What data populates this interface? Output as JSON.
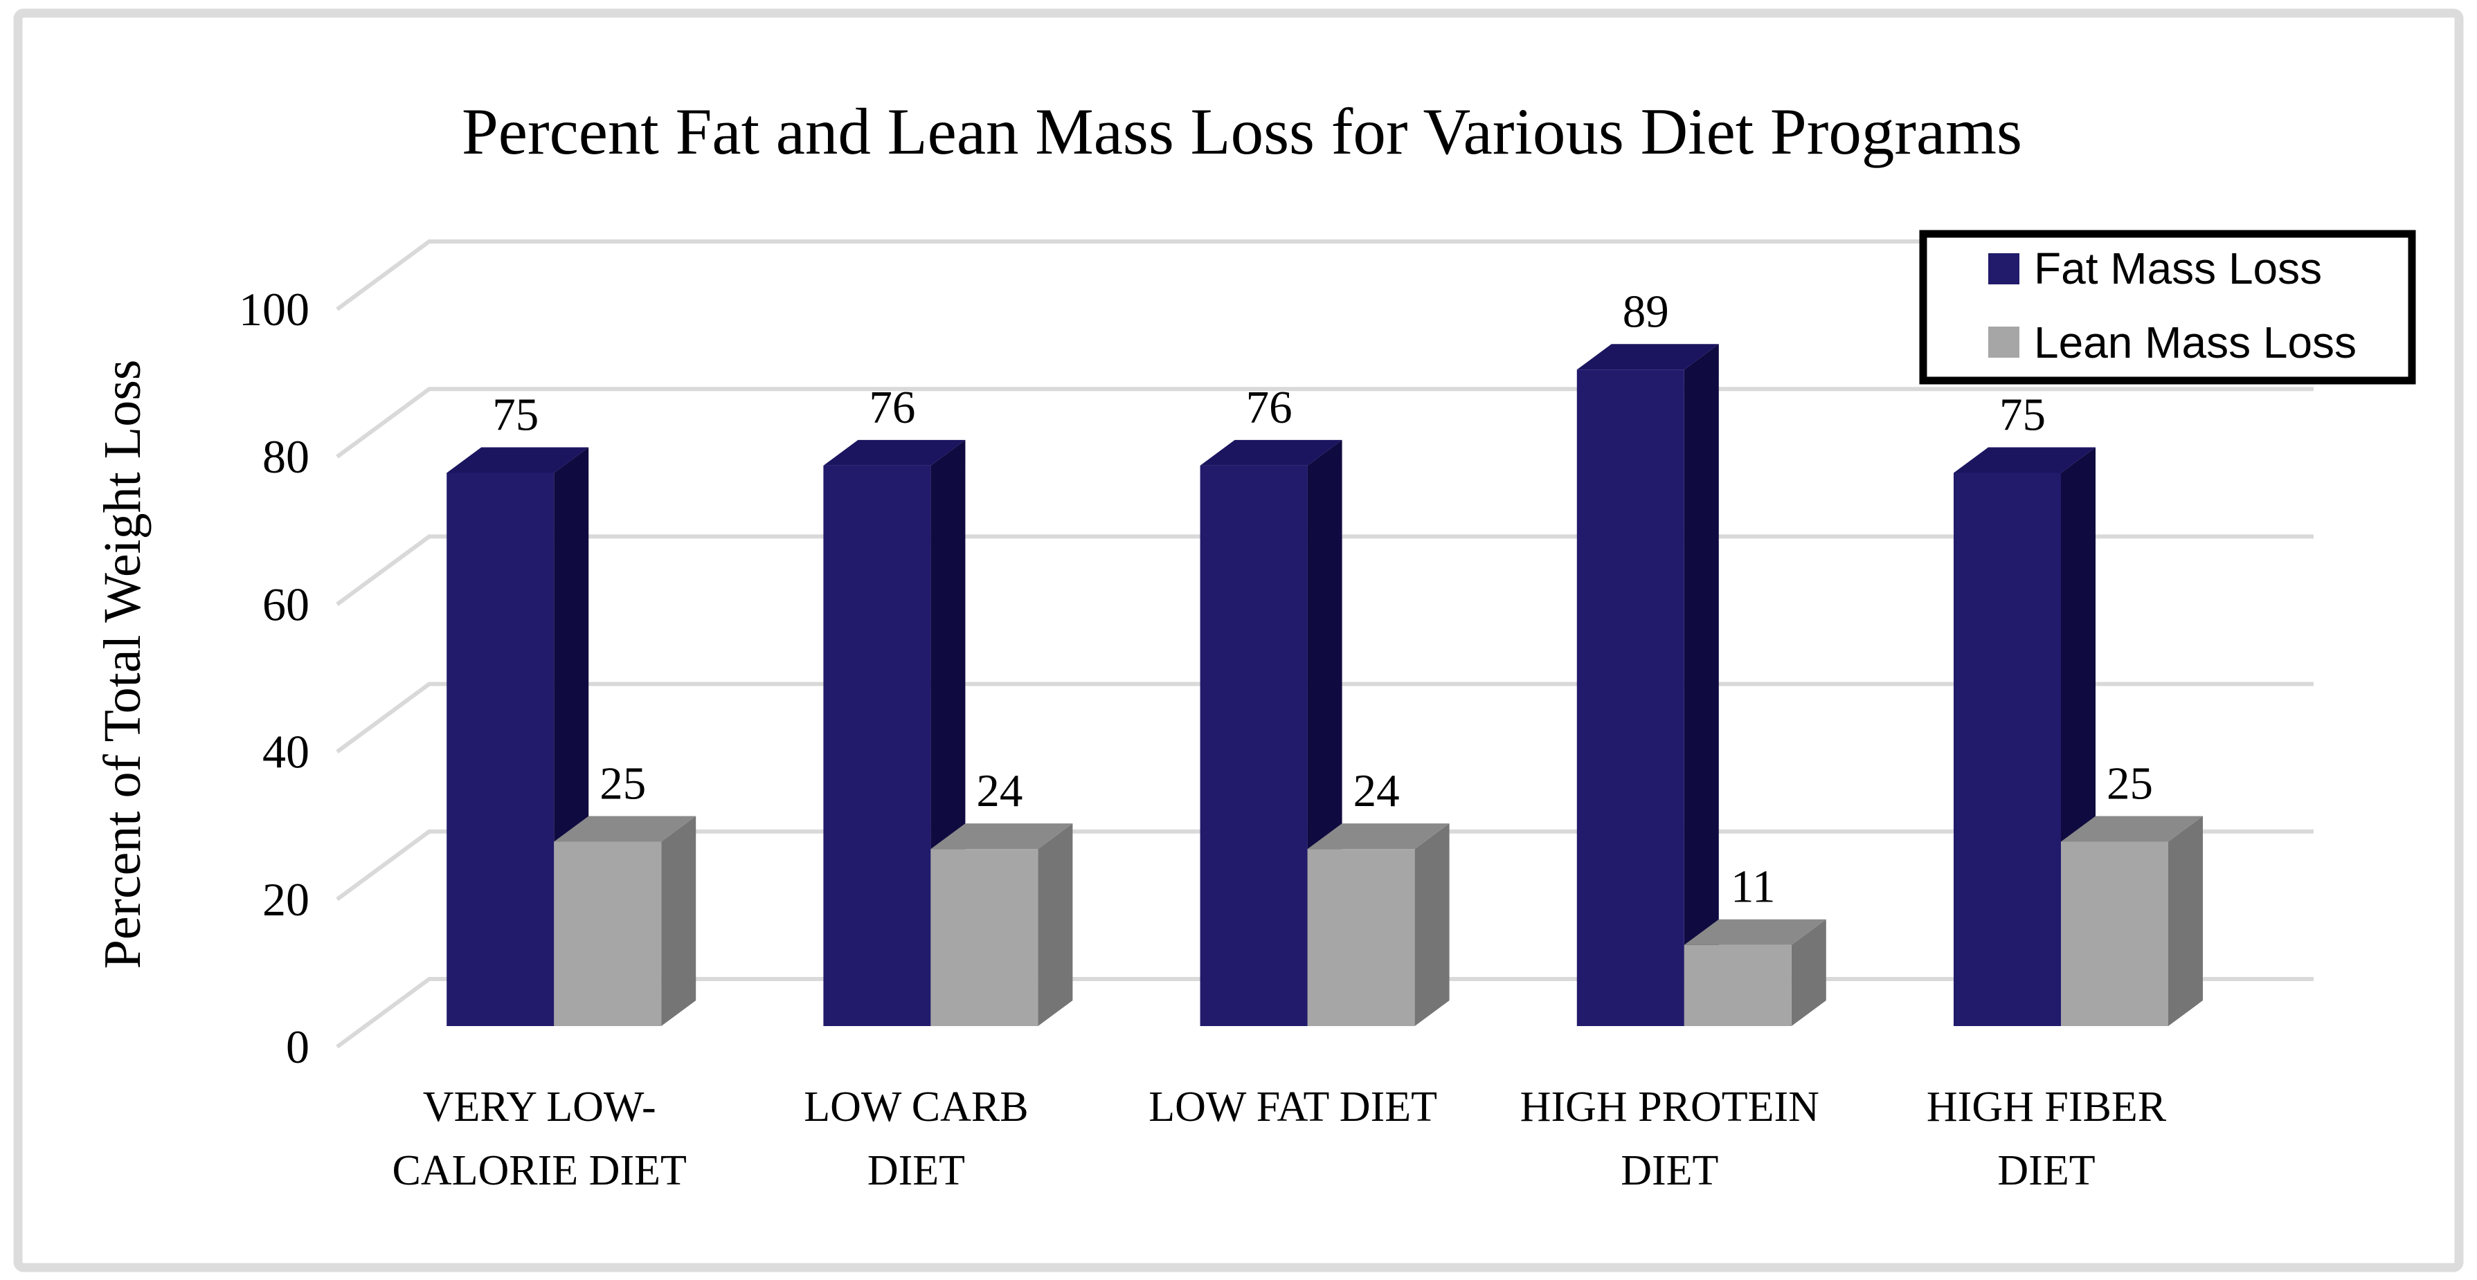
{
  "chart_data": {
    "type": "bar",
    "variant": "3d-column",
    "title": "Percent Fat and Lean Mass Loss for Various Diet Programs",
    "ylabel": "Percent of Total Weight Loss",
    "xlabel": "",
    "categories": [
      "VERY LOW-\nCALORIE DIET",
      "LOW CARB\nDIET",
      "LOW FAT DIET",
      "HIGH PROTEIN\nDIET",
      "HIGH FIBER\nDIET"
    ],
    "series": [
      {
        "name": "Fat Mass Loss",
        "values": [
          75,
          76,
          76,
          89,
          75
        ],
        "color_front": "#221A6B",
        "color_top": "#1B1560",
        "color_side": "#0F0B40"
      },
      {
        "name": "Lean Mass Loss",
        "values": [
          25,
          24,
          24,
          11,
          25
        ],
        "color_front": "#A6A6A6",
        "color_top": "#8A8A8A",
        "color_side": "#757575"
      }
    ],
    "yticks": [
      0,
      20,
      40,
      60,
      80,
      100
    ],
    "ylim": [
      0,
      100
    ],
    "grid": true,
    "data_labels": true,
    "legend_position": "top-right",
    "gridline_color": "#D9D9D9",
    "frame_border_color": "#DCDCDC",
    "legend_border_color": "#000000",
    "legend_fill_color": "#FFFFFF",
    "text_color": "#000000",
    "background_color": "#FFFFFF"
  }
}
